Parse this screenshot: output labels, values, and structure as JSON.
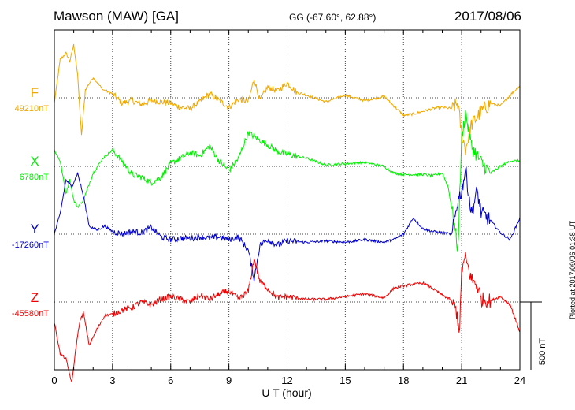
{
  "header": {
    "station": "Mawson (MAW)  [GA]",
    "coords": "GG (-67.60°,  62.88°)",
    "date": "2017/08/06"
  },
  "footer": {
    "plotted": "Plotted at 2017/09/06 01:38 UT"
  },
  "chart_data": {
    "type": "line",
    "xlabel": "U T (hour)",
    "xlim": [
      0,
      24
    ],
    "xticks": [
      "0",
      "3",
      "6",
      "9",
      "12",
      "15",
      "18",
      "21",
      "24"
    ],
    "grid": true,
    "scale_bar": {
      "label": "500 nT",
      "value_nT": 500
    },
    "series": [
      {
        "name": "F",
        "baseline_label": "49210nT",
        "baseline_nT": 49210,
        "color": "#f0a800",
        "x": [
          0,
          0.3,
          0.6,
          0.8,
          1.0,
          1.2,
          1.4,
          1.6,
          2.0,
          2.5,
          3.0,
          3.5,
          4.0,
          4.5,
          5.0,
          5.5,
          6.0,
          6.5,
          7.0,
          7.5,
          8.0,
          8.5,
          9.0,
          9.5,
          10.0,
          10.3,
          10.6,
          11.0,
          11.5,
          12.0,
          12.5,
          13.0,
          14.0,
          15.0,
          16.0,
          17.0,
          17.5,
          18.0,
          18.5,
          19.0,
          19.5,
          20.0,
          20.5,
          20.8,
          21.0,
          21.2,
          21.5,
          22.0,
          22.5,
          23.0,
          23.5,
          24.0
        ],
        "y": [
          -40,
          280,
          330,
          270,
          390,
          170,
          -280,
          60,
          150,
          60,
          30,
          -40,
          -20,
          -50,
          -20,
          -30,
          -40,
          -70,
          -80,
          -30,
          30,
          -20,
          -70,
          -10,
          -30,
          140,
          -20,
          80,
          50,
          110,
          40,
          20,
          -30,
          20,
          -20,
          10,
          -60,
          -130,
          -120,
          -100,
          -80,
          -70,
          -80,
          -40,
          -270,
          -380,
          -200,
          -100,
          -40,
          -60,
          20,
          90
        ]
      },
      {
        "name": "X",
        "baseline_label": "6780nT",
        "baseline_nT": 6780,
        "color": "#00ee00",
        "x": [
          0,
          0.3,
          0.6,
          0.8,
          1.0,
          1.2,
          1.5,
          2.0,
          2.5,
          3.0,
          3.5,
          4.0,
          4.5,
          5.0,
          5.5,
          6.0,
          6.5,
          7.0,
          7.5,
          8.0,
          8.5,
          9.0,
          9.5,
          10.0,
          10.5,
          11.0,
          11.5,
          12.0,
          13.0,
          14.0,
          15.0,
          16.0,
          17.0,
          17.5,
          18.0,
          19.0,
          19.5,
          20.0,
          20.3,
          20.6,
          20.8,
          21.0,
          21.2,
          21.5,
          22.0,
          22.5,
          23.0,
          23.5,
          24.0
        ],
        "y": [
          120,
          40,
          -200,
          -100,
          -250,
          -300,
          -250,
          -50,
          60,
          120,
          40,
          -60,
          -80,
          -120,
          -80,
          20,
          60,
          100,
          80,
          150,
          40,
          -30,
          60,
          250,
          200,
          160,
          110,
          90,
          60,
          10,
          20,
          30,
          0,
          -50,
          -60,
          -60,
          -70,
          -50,
          -150,
          -400,
          -620,
          200,
          400,
          150,
          30,
          -50,
          0,
          40,
          40
        ]
      },
      {
        "name": "Y",
        "baseline_label": "-17260nT",
        "baseline_nT": -17260,
        "color": "#0000cc",
        "x": [
          0,
          0.3,
          0.6,
          0.9,
          1.2,
          1.5,
          1.8,
          2.2,
          2.6,
          3.0,
          3.5,
          4.0,
          4.5,
          5.0,
          5.5,
          6.0,
          6.5,
          7.0,
          7.5,
          8.0,
          8.5,
          9.0,
          9.5,
          10.0,
          10.3,
          10.6,
          11.0,
          11.5,
          12.0,
          13.0,
          14.0,
          15.0,
          16.0,
          17.0,
          17.5,
          18.0,
          18.5,
          19.0,
          19.5,
          20.0,
          20.5,
          20.8,
          21.0,
          21.2,
          21.5,
          21.8,
          22.0,
          22.5,
          23.0,
          23.5,
          24.0
        ],
        "y": [
          0,
          150,
          400,
          350,
          450,
          280,
          60,
          30,
          60,
          20,
          0,
          20,
          10,
          50,
          -20,
          -40,
          -30,
          -30,
          -20,
          -30,
          -20,
          -40,
          -20,
          -120,
          -330,
          -80,
          -40,
          -80,
          -50,
          -60,
          -50,
          -60,
          -40,
          -60,
          -40,
          0,
          120,
          40,
          20,
          10,
          0,
          250,
          320,
          480,
          150,
          320,
          160,
          100,
          10,
          -40,
          120
        ]
      },
      {
        "name": "Z",
        "baseline_label": "-45580nT",
        "baseline_nT": -45580,
        "color": "#ee0000",
        "x": [
          0,
          0.3,
          0.6,
          0.9,
          1.1,
          1.3,
          1.5,
          1.8,
          2.2,
          2.6,
          3.0,
          3.5,
          4.0,
          4.5,
          5.0,
          5.5,
          6.0,
          6.5,
          7.0,
          7.5,
          8.0,
          8.5,
          9.0,
          9.5,
          10.0,
          10.3,
          10.6,
          11.0,
          11.5,
          12.0,
          13.0,
          14.0,
          15.0,
          16.0,
          17.0,
          17.5,
          18.0,
          18.5,
          19.0,
          19.5,
          20.0,
          20.4,
          20.7,
          20.9,
          21.0,
          21.2,
          21.5,
          21.8,
          22.0,
          22.5,
          23.0,
          23.5,
          24.0
        ],
        "y": [
          -150,
          -380,
          -420,
          -600,
          -350,
          -150,
          -80,
          -320,
          -200,
          -100,
          -90,
          -60,
          -40,
          0,
          -20,
          20,
          40,
          20,
          0,
          50,
          20,
          60,
          80,
          20,
          80,
          320,
          150,
          100,
          30,
          40,
          20,
          20,
          40,
          60,
          30,
          100,
          120,
          130,
          140,
          100,
          50,
          20,
          -50,
          -210,
          240,
          320,
          170,
          120,
          20,
          10,
          40,
          -20,
          -220
        ]
      }
    ]
  }
}
